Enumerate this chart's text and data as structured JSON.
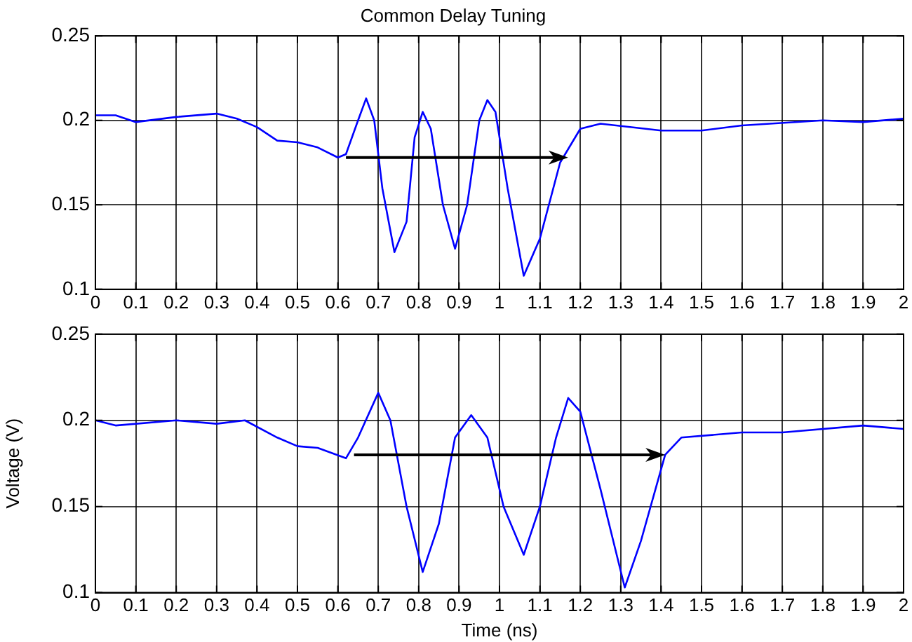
{
  "chart_data": [
    {
      "type": "line",
      "title": "Common Delay Tuning",
      "grid": true,
      "marker": "none",
      "line_style": "solid",
      "legend": false,
      "xlim": [
        0,
        2
      ],
      "xticks": [
        0,
        0.1,
        0.2,
        0.3,
        0.4,
        0.5,
        0.6,
        0.7,
        0.8,
        0.9,
        1,
        1.1,
        1.2,
        1.3,
        1.4,
        1.5,
        1.6,
        1.7,
        1.8,
        1.9,
        2
      ],
      "ylim": [
        0.1,
        0.25
      ],
      "yticks": [
        0.1,
        0.15,
        0.2,
        0.25
      ],
      "series": [
        {
          "color": "#0000ff",
          "x": [
            0,
            0.05,
            0.1,
            0.2,
            0.3,
            0.35,
            0.4,
            0.45,
            0.5,
            0.55,
            0.6,
            0.62,
            0.65,
            0.67,
            0.69,
            0.71,
            0.74,
            0.77,
            0.79,
            0.81,
            0.83,
            0.86,
            0.89,
            0.92,
            0.95,
            0.97,
            0.99,
            1.02,
            1.06,
            1.1,
            1.15,
            1.2,
            1.25,
            1.4,
            1.5,
            1.6,
            1.8,
            1.9,
            2
          ],
          "values": [
            0.203,
            0.203,
            0.199,
            0.202,
            0.204,
            0.201,
            0.196,
            0.188,
            0.187,
            0.184,
            0.178,
            0.18,
            0.2,
            0.213,
            0.2,
            0.16,
            0.122,
            0.14,
            0.19,
            0.205,
            0.195,
            0.15,
            0.124,
            0.15,
            0.2,
            0.212,
            0.205,
            0.16,
            0.108,
            0.13,
            0.175,
            0.195,
            0.198,
            0.194,
            0.194,
            0.197,
            0.2,
            0.199,
            0.201
          ]
        }
      ]
    },
    {
      "type": "line",
      "xlabel": "Time (ns)",
      "ylabel": "Voltage (V)",
      "grid": true,
      "marker": "none",
      "line_style": "solid",
      "legend": false,
      "xlim": [
        0,
        2
      ],
      "xticks": [
        0,
        0.1,
        0.2,
        0.3,
        0.4,
        0.5,
        0.6,
        0.7,
        0.8,
        0.9,
        1,
        1.1,
        1.2,
        1.3,
        1.4,
        1.5,
        1.6,
        1.7,
        1.8,
        1.9,
        2
      ],
      "ylim": [
        0.1,
        0.25
      ],
      "yticks": [
        0.1,
        0.15,
        0.2,
        0.25
      ],
      "series": [
        {
          "color": "#0000ff",
          "x": [
            0,
            0.05,
            0.2,
            0.3,
            0.37,
            0.45,
            0.5,
            0.55,
            0.62,
            0.65,
            0.7,
            0.73,
            0.77,
            0.81,
            0.85,
            0.89,
            0.93,
            0.97,
            1.01,
            1.06,
            1.1,
            1.14,
            1.17,
            1.2,
            1.25,
            1.31,
            1.35,
            1.41,
            1.45,
            1.6,
            1.7,
            1.9,
            2
          ],
          "values": [
            0.2,
            0.197,
            0.2,
            0.198,
            0.2,
            0.19,
            0.185,
            0.184,
            0.178,
            0.19,
            0.216,
            0.2,
            0.15,
            0.112,
            0.14,
            0.19,
            0.203,
            0.19,
            0.15,
            0.122,
            0.15,
            0.19,
            0.213,
            0.205,
            0.16,
            0.103,
            0.13,
            0.18,
            0.19,
            0.193,
            0.193,
            0.197,
            0.195
          ]
        }
      ]
    }
  ]
}
